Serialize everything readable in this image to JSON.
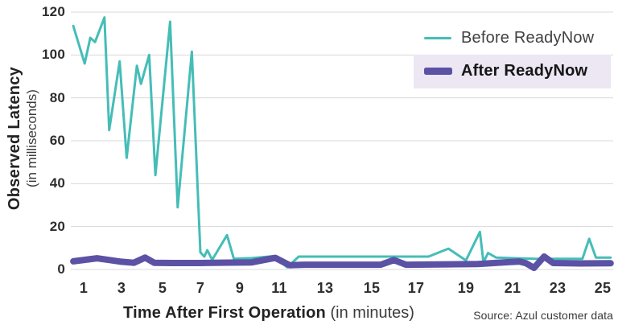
{
  "chart_data": {
    "type": "line",
    "xlabel_bold": "Time After First Operation",
    "xlabel_normal": " (in minutes)",
    "ylabel_bold": "Observed Latency",
    "ylabel_normal": "(in milliseconds)",
    "source": "Source: Azul customer data",
    "x_ticks": [
      1,
      3,
      5,
      7,
      9,
      11,
      13,
      15,
      17,
      19,
      21,
      23,
      25
    ],
    "y_ticks": [
      0,
      20,
      40,
      60,
      80,
      100,
      120
    ],
    "ylim": [
      0,
      120
    ],
    "grid": "horizontal",
    "grid_color": "#d8d8d8",
    "legend_position": "top-right",
    "series": [
      {
        "name": "Before ReadyNow",
        "color": "#45bdb7",
        "stroke_width": 3,
        "points": [
          [
            0.45,
            113.5
          ],
          [
            1.05,
            96
          ],
          [
            1.35,
            108
          ],
          [
            1.6,
            106
          ],
          [
            2.1,
            117.5
          ],
          [
            2.35,
            65
          ],
          [
            2.9,
            97
          ],
          [
            3.25,
            52
          ],
          [
            3.75,
            95
          ],
          [
            3.95,
            86.5
          ],
          [
            4.35,
            100
          ],
          [
            4.65,
            44
          ],
          [
            5.4,
            115.5
          ],
          [
            5.8,
            29
          ],
          [
            6.55,
            101.5
          ],
          [
            7.0,
            8
          ],
          [
            7.2,
            6
          ],
          [
            7.35,
            9
          ],
          [
            7.6,
            4.5
          ],
          [
            8.35,
            16
          ],
          [
            8.7,
            5
          ],
          [
            9.6,
            5.3
          ],
          [
            10.7,
            6.2
          ],
          [
            11.35,
            1
          ],
          [
            11.85,
            6
          ],
          [
            17.5,
            6
          ],
          [
            18.3,
            9.7
          ],
          [
            19.0,
            4.2
          ],
          [
            19.6,
            17.5
          ],
          [
            19.75,
            3.3
          ],
          [
            19.95,
            7.7
          ],
          [
            20.3,
            5.5
          ],
          [
            22,
            5
          ],
          [
            24.1,
            5
          ],
          [
            24.4,
            14.3
          ],
          [
            24.7,
            5.5
          ],
          [
            25.35,
            5.5
          ]
        ]
      },
      {
        "name": "After ReadyNow",
        "color": "#5b52a5",
        "stroke_width": 8,
        "legend_highlight": "#ece7f3",
        "points": [
          [
            0.45,
            3.8
          ],
          [
            1.7,
            5.2
          ],
          [
            3.0,
            3.6
          ],
          [
            3.6,
            3.1
          ],
          [
            4.15,
            5.5
          ],
          [
            4.6,
            3.1
          ],
          [
            5.5,
            3
          ],
          [
            7,
            3
          ],
          [
            8.5,
            3.2
          ],
          [
            9.6,
            3.3
          ],
          [
            10.8,
            5.4
          ],
          [
            11.45,
            2
          ],
          [
            12.1,
            2.2
          ],
          [
            15.4,
            2.2
          ],
          [
            16.0,
            4.4
          ],
          [
            16.55,
            2.2
          ],
          [
            17.5,
            2.3
          ],
          [
            19.5,
            2.5
          ],
          [
            21.3,
            3.7
          ],
          [
            21.6,
            2.9
          ],
          [
            21.95,
            0.7
          ],
          [
            22.4,
            6
          ],
          [
            22.8,
            3
          ],
          [
            24,
            2.8
          ],
          [
            25.35,
            2.9
          ]
        ]
      }
    ]
  }
}
